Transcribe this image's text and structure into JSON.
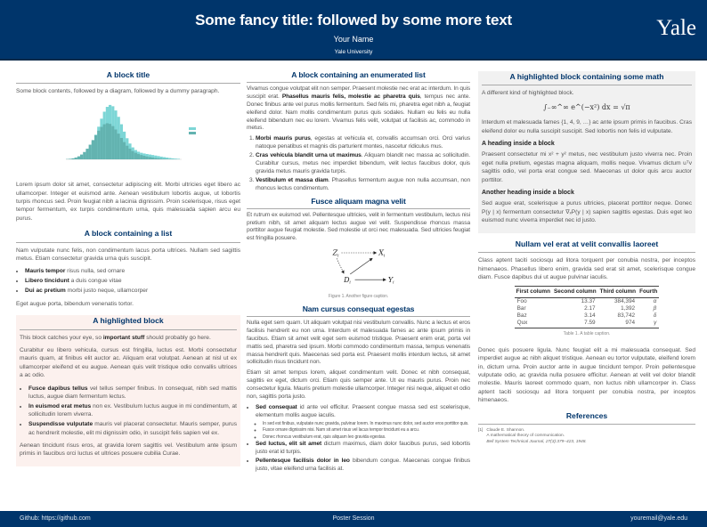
{
  "header": {
    "title": "Some fancy title: followed by some more text",
    "author": "Your Name",
    "institution": "Yale University",
    "logo": "Yale",
    "bg": "#00356b"
  },
  "footer": {
    "left": "Github: https://github.com",
    "center": "Poster Session",
    "right": "youremail@yale.edu"
  },
  "col1": {
    "b1": {
      "title": "A block title",
      "intro": "Some block contents, followed by a diagram, followed by a dummy paragraph.",
      "para": "Lorem ipsum dolor sit amet, consectetur adipiscing elit. Morbi ultricies eget libero ac ullamcorper. Integer et euismod ante. Aenean vestibulum lobortis augue, ut lobortis turpis rhoncus sed. Proin feugiat nibh a lacinia dignissim. Proin scelerisque, risus eget tempor fermentum, ex turpis condimentum urna, quis malesuada sapien arcu eu purus."
    },
    "b2": {
      "title": "A block containing a list",
      "intro": "Nam vulputate nunc felis, non condimentum lacus porta ultrices. Nullam sed sagittis metus. Etiam consectetur gravida urna quis suscipit.",
      "items": [
        {
          "b": "Mauris tempor",
          "t": " risus nulla, sed ornare"
        },
        {
          "b": "Libero tincidunt",
          "t": " a duis congue vitae"
        },
        {
          "b": "Dui ac pretium",
          "t": " morbi justo neque, ullamcorper"
        }
      ],
      "outro": "Eget augue porta, bibendum venenatis tortor."
    },
    "b3": {
      "title": "A highlighted block",
      "p1a": "This block catches your eye, so ",
      "p1b": "important stuff",
      "p1c": " should probably go here.",
      "p2": "Curabitur eu libero vehicula, cursus est fringilla, luctus est. Morbi consectetur mauris quam, at finibus elit auctor ac. Aliquam erat volutpat. Aenean at nisl ut ex ullamcorper eleifend et eu augue. Aenean quis velit tristique odio convallis ultrices a ac odio.",
      "items": [
        {
          "b": "Fusce dapibus tellus",
          "t": " vel tellus semper finibus. In consequat, nibh sed mattis luctus, augue diam fermentum lectus."
        },
        {
          "b": "In euismod erat metus",
          "t": " non ex. Vestibulum luctus augue in mi condimentum, at sollicitudin lorem viverra."
        },
        {
          "b": "Suspendisse vulputate",
          "t": " mauris vel placerat consectetur. Mauris semper, purus ac hendrerit molestie, elit mi dignissim odio, in suscipit felis sapien vel ex."
        }
      ],
      "p3": "Aenean tincidunt risus eros, at gravida lorem sagittis vel. Vestibulum ante ipsum primis in faucibus orci luctus et ultrices posuere cubilia Curae."
    }
  },
  "col2": {
    "b1": {
      "title": "A block containing an enumerated list",
      "p1a": "Vivamus congue volutpat elit non semper. Praesent molestie nec erat ac interdum. In quis suscipit erat. ",
      "p1b": "Phasellus mauris felis, molestie ac pharetra quis",
      "p1c": ", tempus nec ante. Donec finibus ante vel purus mollis fermentum. Sed felis mi, pharetra eget nibh a, feugiat eleifend dolor. Nam mollis condimentum purus quis sodales. Nullam eu felis eu nulla eleifend bibendum nec eu lorem. Vivamus felis velit, volutpat ut facilisis ac, commodo in metus.",
      "items": [
        {
          "b": "Morbi mauris purus",
          "t": ", egestas at vehicula et, convallis accumsan orci. Orci varius natoque penatibus et magnis dis parturient montes, nascetur ridiculus mus."
        },
        {
          "b": "Cras vehicula blandit urna ut maximus",
          "t": ". Aliquam blandit nec massa ac sollicitudin. Curabitur cursus, metus nec imperdiet bibendum, velit lectus faucibus dolor, quis gravida metus mauris gravida turpis."
        },
        {
          "b": "Vestibulum et massa diam",
          "t": ". Phasellus fermentum augue non nulla accumsan, non rhoncus lectus condimentum."
        }
      ]
    },
    "b2": {
      "title": "Fusce aliquam magna velit",
      "p": "Et rutrum ex euismod vel. Pellentesque ultricies, velit in fermentum vestibulum, lectus nisi pretium nibh, sit amet aliquam lectus augue vel velit. Suspendisse rhoncus massa porttitor augue feugiat molestie. Sed molestie ut orci nec malesuada. Sed ultricies feugiat est fringilla posuere.",
      "nodes": {
        "z": "Z",
        "x": "X",
        "d": "D",
        "y": "Y",
        "sub": "i"
      },
      "caption": "Figure 1. Another figure caption."
    },
    "b3": {
      "title": "Nam cursus consequat egestas",
      "p1": "Nulla eget sem quam. Ut aliquam volutpat nisi vestibulum convallis. Nunc a lectus et eros facilisis hendrerit eu non urna. Interdum et malesuada fames ac ante ipsum primis in faucibus. Etiam sit amet velit eget sem euismod tristique. Praesent enim erat, porta vel mattis sed, pharetra sed ipsum. Morbi commodo condimentum massa, tempus venenatis massa hendrerit quis. Maecenas sed porta est. Praesent mollis interdum lectus, sit amet sollicitudin risus tincidunt non.",
      "p2": "Etiam sit amet tempus lorem, aliquet condimentum velit. Donec et nibh consequat, sagittis ex eget, dictum orci. Etiam quis semper ante. Ut eu mauris purus. Proin nec consectetur ligula. Mauris pretium molestie ullamcorper. Integer nisi neque, aliquet et odio non, sagittis porta justo.",
      "items": [
        {
          "b": "Sed consequat",
          "t": " id ante vel efficitur. Praesent congue massa sed est scelerisque, elementum mollis augue iaculis.",
          "sub": [
            "In sed est finibus, vulputate nunc gravida, pulvinar lorem. In maximus nunc dolor, sed auctor eros porttitor quis.",
            "Fusce ornare dignissim nisi. Nam sit amet risus vel lacus tempor tincidunt eu a arcu.",
            "Donec rhoncus vestibulum erat, quis aliquam leo gravida egestas."
          ]
        },
        {
          "b": "Sed luctus, elit sit amet",
          "t": " dictum maximus, diam dolor faucibus purus, sed lobortis justo erat id turpis."
        },
        {
          "b": "Pellentesque facilisis dolor in leo",
          "t": " bibendum congue. Maecenas congue finibus justo, vitae eleifend urna facilisis at."
        }
      ]
    }
  },
  "col3": {
    "b1": {
      "title": "A highlighted block containing some math",
      "intro": "A different kind of highlighted block.",
      "equation": "∫₋∞^∞ e^(−x²) dx = √π",
      "p1": "Interdum et malesuada fames {1, 4, 9, …} ac ante ipsum primis in faucibus. Cras eleifend dolor eu nulla suscipit suscipit. Sed lobortis non felis id vulputate.",
      "h1": "A heading inside a block",
      "p2": "Praesent consectetur mi x² + y² metus, nec vestibulum justo viverra nec. Proin eget nulla pretium, egestas magna aliquam, mollis neque. Vivamus dictum uᵀv sagittis odio, vel porta erat congue sed. Maecenas ut dolor quis arcu auctor porttitor.",
      "h2": "Another heading inside a block",
      "p3": "Sed augue erat, scelerisque a purus ultricies, placerat porttitor neque. Donec P(y | x) fermentum consectetur ∇ₓP(y | x) sapien sagittis egestas. Duis eget leo euismod nunc viverra imperdiet nec id justo."
    },
    "b2": {
      "title": "Nullam vel erat at velit convallis laoreet",
      "p1": "Class aptent taciti sociosqu ad litora torquent per conubia nostra, per inceptos himenaeos. Phasellus libero enim, gravida sed erat sit amet, scelerisque congue diam. Fusce dapibus dui ut augue pulvinar iaculis.",
      "table": {
        "headers": [
          "First column",
          "Second column",
          "Third column",
          "Fourth"
        ],
        "rows": [
          [
            "Foo",
            "13.37",
            "384,394",
            "α"
          ],
          [
            "Bar",
            "2.17",
            "1,392",
            "β"
          ],
          [
            "Baz",
            "3.14",
            "83,742",
            "δ"
          ],
          [
            "Qux",
            "7.59",
            "974",
            "γ"
          ]
        ]
      },
      "caption": "Table 1. A table caption.",
      "p2": "Donec quis posuere ligula. Nunc feugiat elit a mi malesuada consequat. Sed imperdiet augue ac nibh aliquet tristique. Aenean eu tortor vulputate, eleifend lorem in, dictum urna. Proin auctor ante in augue tincidunt tempor. Proin pellentesque vulputate odio, ac gravida nulla posuere efficitur. Aenean at velit vel dolor blandit molestie. Mauris laoreet commodo quam, non luctus nibh ullamcorper in. Class aptent taciti sociosqu ad litora torquent per conubia nostra, per inceptos himenaeos."
    },
    "b3": {
      "title": "References",
      "ref": {
        "num": "[1]",
        "author": "Claude E. Shannon.",
        "title": "A mathematical theory of communication.",
        "journal": "Bell System Technical Journal, 27(3):379–423, 1948."
      }
    }
  }
}
